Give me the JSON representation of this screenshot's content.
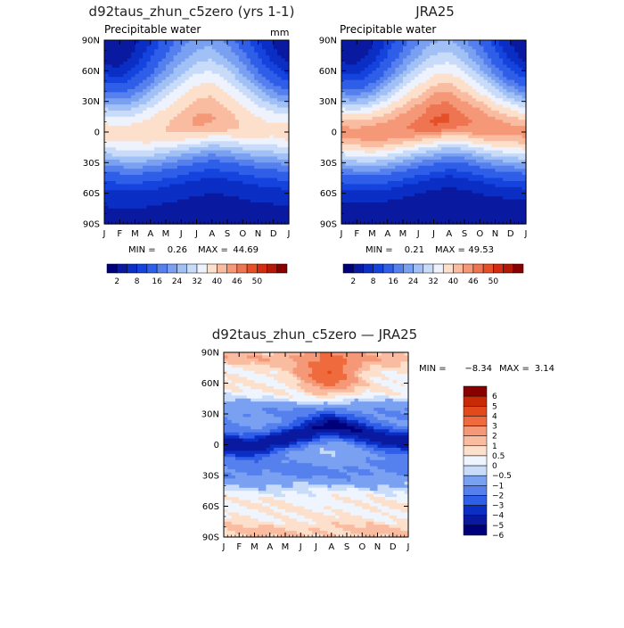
{
  "panels": [
    {
      "title": "d92taus_zhun_c5zero (yrs 1-1)",
      "subtitle": "Precipitable water",
      "units": "mm",
      "min_label": "MIN =",
      "min_value": "0.26",
      "max_label": "MAX =",
      "max_value": "44.69"
    },
    {
      "title": "JRA25",
      "subtitle": "Precipitable water",
      "units": "",
      "min_label": "MIN =",
      "min_value": "0.21",
      "max_label": "MAX =",
      "max_value": "49.53"
    },
    {
      "title": "d92taus_zhun_c5zero — JRA25",
      "subtitle": "",
      "units": "",
      "min_label": "MIN =",
      "min_value": "−8.34",
      "max_label": "MAX =",
      "max_value": "3.14"
    }
  ],
  "colors": {
    "pw": [
      "#00007a",
      "#0a1aa0",
      "#0b2fc5",
      "#1444dd",
      "#2f5ee8",
      "#5580ee",
      "#7aa0f2",
      "#a0c0f6",
      "#c8dcfa",
      "#eef2fc",
      "#fde0cc",
      "#f9bca0",
      "#f59878",
      "#ef7452",
      "#e65028",
      "#d42c10",
      "#b31808",
      "#880000"
    ],
    "diff": [
      "#00007a",
      "#0a1aa0",
      "#0b2fc5",
      "#2f5ee8",
      "#5580ee",
      "#7aa0f2",
      "#c8dcfa",
      "#eef5ff",
      "#fde0cc",
      "#f9bca0",
      "#f59878",
      "#ef6a3c",
      "#e24a1c",
      "#c82a08",
      "#880000"
    ]
  },
  "chart_data": [
    {
      "type": "heatmap",
      "title": "d92taus_zhun_c5zero (yrs 1-1)",
      "subtitle": "Precipitable water",
      "units": "mm",
      "x": [
        "J",
        "F",
        "M",
        "A",
        "M",
        "J",
        "J",
        "A",
        "S",
        "O",
        "N",
        "D",
        "J"
      ],
      "y_ticks": [
        "90N",
        "60N",
        "30N",
        "0",
        "30S",
        "60S",
        "90S"
      ],
      "y_values": [
        90,
        60,
        30,
        0,
        -30,
        -60,
        -90
      ],
      "min": 0.26,
      "max": 44.69,
      "levels": [
        2,
        5,
        8,
        11,
        16,
        20,
        24,
        28,
        32,
        36,
        40,
        43,
        46,
        48,
        50
      ],
      "colorbar_labels": [
        "2",
        "8",
        "16",
        "24",
        "32",
        "40",
        "46",
        "50"
      ],
      "field": {
        "equator_max_lat_by_month": [
          0,
          -2,
          -2,
          0,
          4,
          8,
          12,
          15,
          12,
          8,
          4,
          2,
          0
        ],
        "equator_peak_mm": [
          38,
          37,
          38,
          39,
          40,
          42,
          44,
          44,
          42,
          40,
          38,
          37,
          38
        ],
        "south_pole_mm": 4,
        "north_pole_mm_jan": 2,
        "north_pole_mm_jul": 14
      }
    },
    {
      "type": "heatmap",
      "title": "JRA25",
      "subtitle": "Precipitable water",
      "x": [
        "J",
        "F",
        "M",
        "A",
        "M",
        "J",
        "J",
        "A",
        "S",
        "O",
        "N",
        "D",
        "J"
      ],
      "y_ticks": [
        "90N",
        "60N",
        "30N",
        "0",
        "30S",
        "60S",
        "90S"
      ],
      "y_values": [
        90,
        60,
        30,
        0,
        -30,
        -60,
        -90
      ],
      "min": 0.21,
      "max": 49.53,
      "levels": [
        2,
        5,
        8,
        11,
        16,
        20,
        24,
        28,
        32,
        36,
        40,
        43,
        46,
        48,
        50
      ],
      "colorbar_labels": [
        "2",
        "8",
        "16",
        "24",
        "32",
        "40",
        "46",
        "50"
      ],
      "field": {
        "equator_max_lat_by_month": [
          0,
          -2,
          -2,
          0,
          4,
          8,
          12,
          15,
          12,
          8,
          4,
          2,
          0
        ],
        "equator_peak_mm": [
          44,
          44,
          45,
          45,
          46,
          47,
          49,
          49,
          47,
          46,
          45,
          44,
          44
        ],
        "south_pole_mm": 3,
        "north_pole_mm_jan": 2,
        "north_pole_mm_jul": 15
      }
    },
    {
      "type": "heatmap",
      "title": "d92taus_zhun_c5zero — JRA25",
      "x": [
        "J",
        "F",
        "M",
        "A",
        "M",
        "J",
        "J",
        "A",
        "S",
        "O",
        "N",
        "D",
        "J"
      ],
      "y_ticks": [
        "90N",
        "60N",
        "30N",
        "0",
        "30S",
        "60S",
        "90S"
      ],
      "y_values": [
        90,
        60,
        30,
        0,
        -30,
        -60,
        -90
      ],
      "min": -8.34,
      "max": 3.14,
      "levels": [
        -6,
        -5,
        -4,
        -3,
        -2,
        -1,
        -0.5,
        0,
        0.5,
        1,
        2,
        3,
        4,
        5,
        6
      ],
      "colorbar_labels": [
        "6",
        "5",
        "4",
        "3",
        "2",
        "1",
        "0.5",
        "0",
        "−0.5",
        "−1",
        "−2",
        "−3",
        "−4",
        "−5",
        "−6"
      ]
    }
  ]
}
